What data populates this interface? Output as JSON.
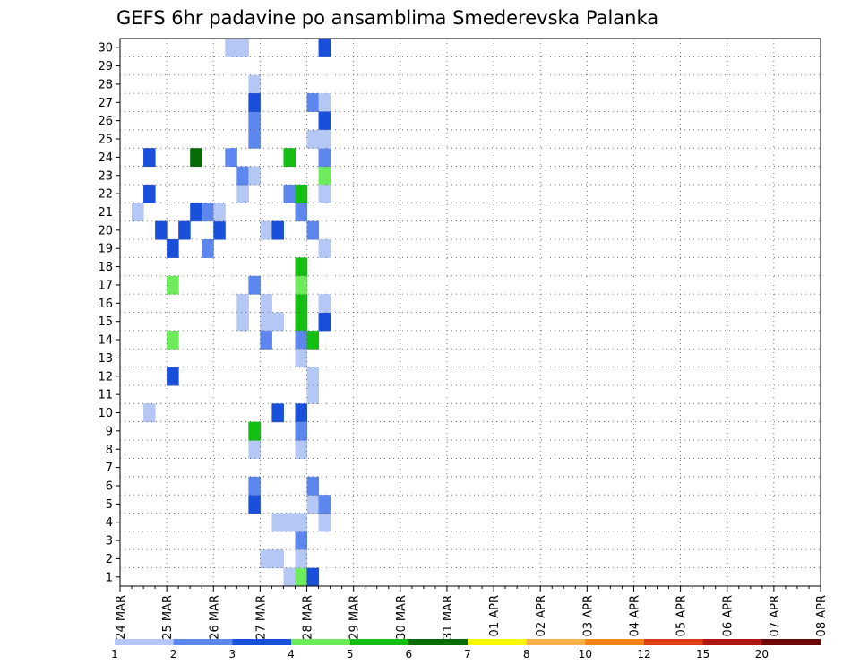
{
  "chart_data": {
    "type": "heatmap",
    "title": "GEFS 6hr padavine po ansamblima Smederevska Palanka",
    "xlabel": "",
    "ylabel": "",
    "x_ticks": [
      "24 MAR",
      "25 MAR",
      "26 MAR",
      "27 MAR",
      "28 MAR",
      "29 MAR",
      "30 MAR",
      "31 MAR",
      "01 APR",
      "02 APR",
      "03 APR",
      "04 APR",
      "05 APR",
      "06 APR",
      "07 APR",
      "08 APR"
    ],
    "xlim_days": [
      0,
      15
    ],
    "x_step_hours": 6,
    "y_ticks": [
      1,
      2,
      3,
      4,
      5,
      6,
      7,
      8,
      9,
      10,
      11,
      12,
      13,
      14,
      15,
      16,
      17,
      18,
      19,
      20,
      21,
      22,
      23,
      24,
      25,
      26,
      27,
      28,
      29,
      30
    ],
    "ylim": [
      0,
      30
    ],
    "grid": true,
    "legend": {
      "placement": "bottom",
      "labels": [
        "1",
        "2",
        "3",
        "4",
        "5",
        "6",
        "7",
        "8",
        "10",
        "12",
        "15",
        "20"
      ],
      "colors": [
        "#b4c7f5",
        "#5d87ee",
        "#1a4fdc",
        "#6eeb5a",
        "#13c012",
        "#086b08",
        "#f6f60a",
        "#f7b248",
        "#f68312",
        "#de3a14",
        "#b01414",
        "#6a0808"
      ]
    },
    "cells": [
      [
        1,
        21,
        1
      ],
      [
        2,
        10,
        1
      ],
      [
        2,
        22,
        3
      ],
      [
        2,
        24,
        3
      ],
      [
        3,
        20,
        3
      ],
      [
        4,
        19,
        3
      ],
      [
        4,
        12,
        3
      ],
      [
        4,
        14,
        4
      ],
      [
        4,
        17,
        4
      ],
      [
        5,
        20,
        3
      ],
      [
        6,
        21,
        3
      ],
      [
        6,
        24,
        6
      ],
      [
        7,
        21,
        2
      ],
      [
        7,
        19,
        2
      ],
      [
        8,
        20,
        3
      ],
      [
        8,
        21,
        1
      ],
      [
        9,
        24,
        2
      ],
      [
        9,
        30,
        1
      ],
      [
        10,
        22,
        1
      ],
      [
        10,
        15,
        1
      ],
      [
        10,
        16,
        1
      ],
      [
        10,
        23,
        2
      ],
      [
        10,
        30,
        1
      ],
      [
        11,
        8,
        1
      ],
      [
        11,
        5,
        3
      ],
      [
        11,
        17,
        2
      ],
      [
        11,
        6,
        2
      ],
      [
        11,
        28,
        1
      ],
      [
        11,
        26,
        2
      ],
      [
        11,
        27,
        3
      ],
      [
        11,
        23,
        1
      ],
      [
        11,
        9,
        4
      ],
      [
        11,
        25,
        2
      ],
      [
        11,
        9,
        5
      ],
      [
        12,
        20,
        1
      ],
      [
        12,
        16,
        1
      ],
      [
        12,
        15,
        1
      ],
      [
        12,
        14,
        2
      ],
      [
        12,
        2,
        1
      ],
      [
        13,
        15,
        1
      ],
      [
        13,
        4,
        1
      ],
      [
        13,
        10,
        3
      ],
      [
        13,
        20,
        3
      ],
      [
        13,
        2,
        1
      ],
      [
        14,
        22,
        2
      ],
      [
        14,
        4,
        1
      ],
      [
        14,
        24,
        5
      ],
      [
        14,
        1,
        1
      ],
      [
        15,
        1,
        2
      ],
      [
        15,
        3,
        2
      ],
      [
        15,
        8,
        1
      ],
      [
        15,
        4,
        1
      ],
      [
        15,
        1,
        4
      ],
      [
        15,
        4,
        1
      ],
      [
        15,
        16,
        5
      ],
      [
        15,
        15,
        5
      ],
      [
        15,
        18,
        5
      ],
      [
        15,
        21,
        2
      ],
      [
        15,
        22,
        5
      ],
      [
        15,
        10,
        3
      ],
      [
        15,
        17,
        4
      ],
      [
        15,
        14,
        2
      ],
      [
        15,
        9,
        2
      ],
      [
        15,
        13,
        1
      ],
      [
        15,
        2,
        1
      ],
      [
        16,
        1,
        3
      ],
      [
        16,
        11,
        1
      ],
      [
        16,
        12,
        1
      ],
      [
        16,
        14,
        5
      ],
      [
        16,
        20,
        2
      ],
      [
        16,
        5,
        1
      ],
      [
        16,
        6,
        2
      ],
      [
        16,
        27,
        2
      ],
      [
        16,
        25,
        1
      ],
      [
        17,
        4,
        1
      ],
      [
        17,
        5,
        2
      ],
      [
        17,
        15,
        3
      ],
      [
        17,
        23,
        4
      ],
      [
        17,
        24,
        4
      ],
      [
        17,
        27,
        1
      ],
      [
        17,
        16,
        1
      ],
      [
        17,
        30,
        3
      ],
      [
        17,
        26,
        1
      ],
      [
        17,
        19,
        1
      ],
      [
        17,
        22,
        1
      ],
      [
        17,
        24,
        2
      ],
      [
        17,
        26,
        3
      ],
      [
        17,
        25,
        1
      ]
    ]
  }
}
